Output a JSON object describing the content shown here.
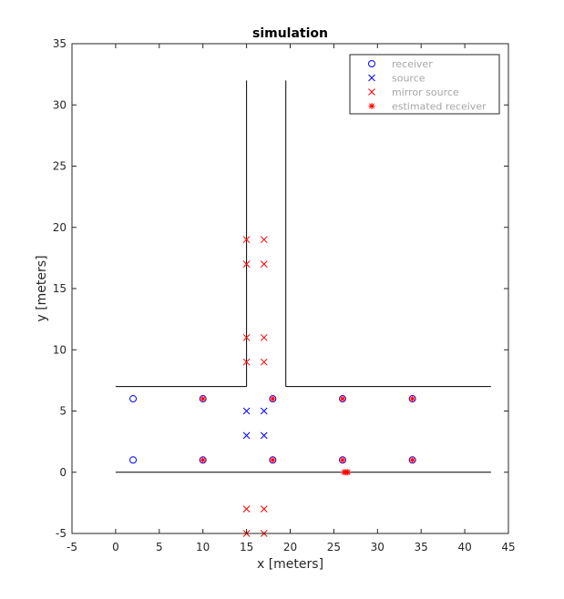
{
  "chart_data": {
    "type": "scatter",
    "title": "simulation",
    "xlabel": "x [meters]",
    "ylabel": "y [meters]",
    "xlim": [
      -5,
      45
    ],
    "ylim": [
      -5,
      35
    ],
    "xticks": [
      -5,
      0,
      5,
      10,
      15,
      20,
      25,
      30,
      35,
      40,
      45
    ],
    "yticks": [
      -5,
      0,
      5,
      10,
      15,
      20,
      25,
      30,
      35
    ],
    "grid": false,
    "legend_position": "top-right",
    "walls": [
      {
        "x": [
          0,
          43
        ],
        "y": [
          0,
          0
        ]
      },
      {
        "x": [
          0,
          15
        ],
        "y": [
          7,
          7
        ]
      },
      {
        "x": [
          15,
          15
        ],
        "y": [
          7,
          32
        ]
      },
      {
        "x": [
          19.5,
          19.5
        ],
        "y": [
          32,
          7
        ]
      },
      {
        "x": [
          19.5,
          43
        ],
        "y": [
          7,
          7
        ]
      }
    ],
    "series": [
      {
        "name": "receiver",
        "marker": "circle",
        "color": "#0000ff",
        "x": [
          2,
          10,
          18,
          26,
          34,
          2,
          10,
          18,
          26,
          34
        ],
        "y": [
          6,
          6,
          6,
          6,
          6,
          1,
          1,
          1,
          1,
          1
        ]
      },
      {
        "name": "source",
        "marker": "x",
        "color": "#0000ff",
        "x": [
          15,
          17,
          15,
          17
        ],
        "y": [
          5,
          5,
          3,
          3
        ]
      },
      {
        "name": "mirror source",
        "marker": "x",
        "color": "#ff0000",
        "x": [
          15,
          17,
          15,
          17,
          15,
          17,
          15,
          17,
          15,
          17,
          15,
          17
        ],
        "y": [
          19,
          19,
          17,
          17,
          11,
          11,
          9,
          9,
          -3,
          -3,
          -5,
          -5
        ]
      },
      {
        "name": "estimated receiver",
        "marker": "star",
        "color": "#ff0000",
        "x": [
          10,
          18,
          26,
          34,
          10,
          18,
          26,
          34,
          26.2,
          26.4,
          26.6
        ],
        "y": [
          6,
          6,
          6,
          6,
          1,
          1,
          1,
          1,
          0,
          0,
          0
        ]
      }
    ]
  }
}
